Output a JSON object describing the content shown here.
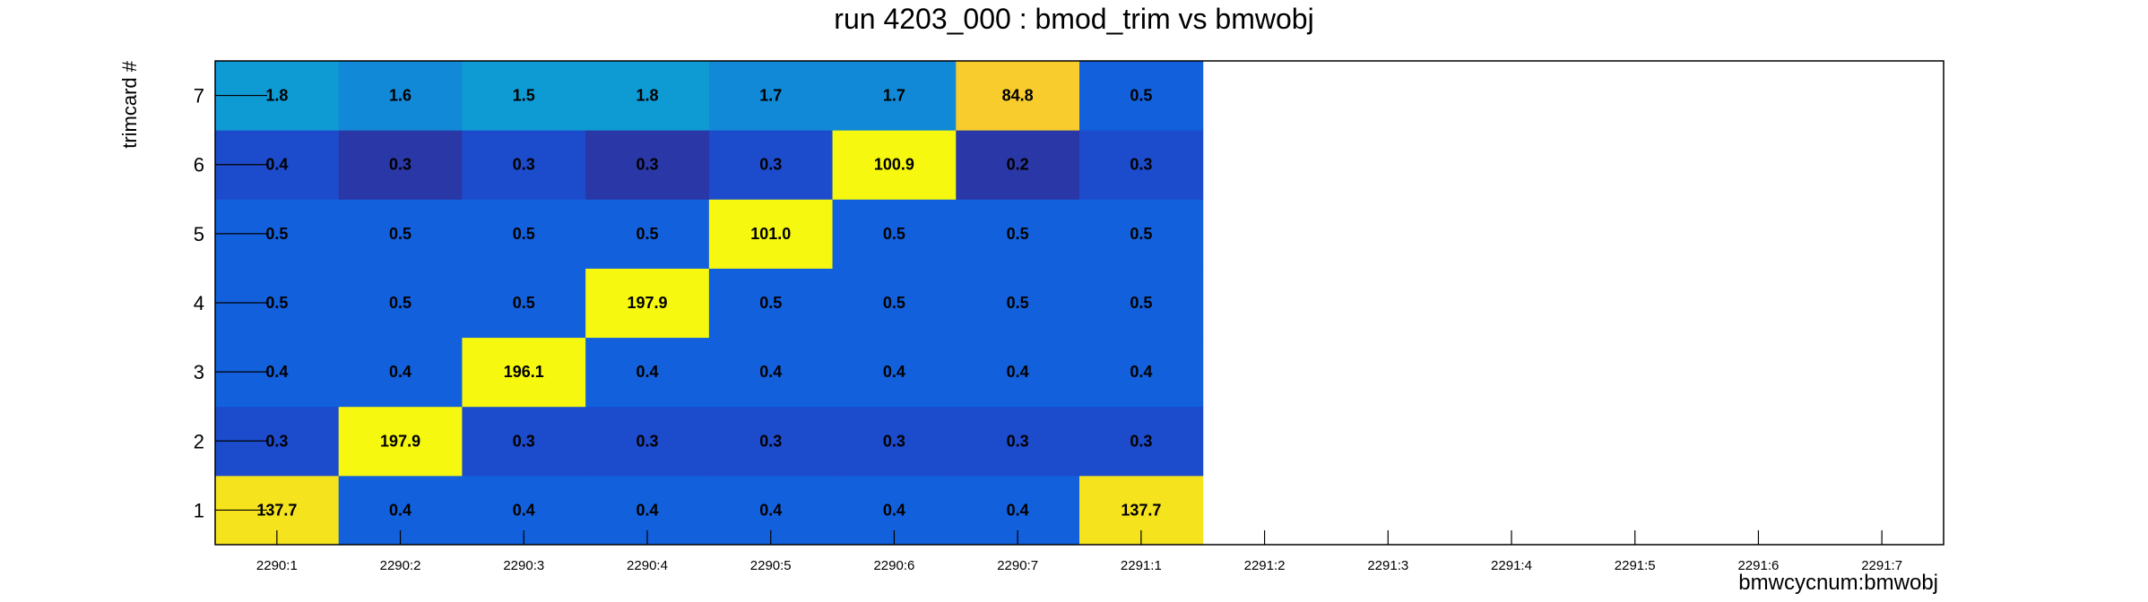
{
  "chart_data": {
    "type": "heatmap",
    "title": "run 4203_000 : bmod_trim vs bmwobj",
    "xlabel": "bmwcycnum:bmwobj",
    "ylabel": "trimcard #",
    "x_categories": [
      "2290:1",
      "2290:2",
      "2290:3",
      "2290:4",
      "2290:5",
      "2290:6",
      "2290:7",
      "2291:1",
      "2291:2",
      "2291:3",
      "2291:4",
      "2291:5",
      "2291:6",
      "2291:7"
    ],
    "y_categories": [
      "1",
      "2",
      "3",
      "4",
      "5",
      "6",
      "7"
    ],
    "values": [
      [
        137.7,
        0.4,
        0.4,
        0.4,
        0.4,
        0.4,
        0.4,
        137.7,
        null,
        null,
        null,
        null,
        null,
        null
      ],
      [
        0.3,
        197.9,
        0.3,
        0.3,
        0.3,
        0.3,
        0.3,
        0.3,
        null,
        null,
        null,
        null,
        null,
        null
      ],
      [
        0.4,
        0.4,
        196.1,
        0.4,
        0.4,
        0.4,
        0.4,
        0.4,
        null,
        null,
        null,
        null,
        null,
        null
      ],
      [
        0.5,
        0.5,
        0.5,
        197.9,
        0.5,
        0.5,
        0.5,
        0.5,
        null,
        null,
        null,
        null,
        null,
        null
      ],
      [
        0.5,
        0.5,
        0.5,
        0.5,
        101.0,
        0.5,
        0.5,
        0.5,
        null,
        null,
        null,
        null,
        null,
        null
      ],
      [
        0.4,
        0.3,
        0.3,
        0.3,
        0.3,
        100.9,
        0.2,
        0.3,
        null,
        null,
        null,
        null,
        null,
        null
      ],
      [
        1.8,
        1.6,
        1.5,
        1.8,
        1.7,
        1.7,
        84.8,
        0.5,
        null,
        null,
        null,
        null,
        null,
        null
      ]
    ],
    "colors": {
      "cell_blue": "#1260dc",
      "cell_darkblue": "#1c4bcc",
      "cell_navy": "#2a37a6",
      "cell_cyan": "#0e9ad3",
      "cell_cyan_mid": "#1289d6",
      "cell_orange": "#f8cc2c",
      "cell_gold": "#f5e31e",
      "cell_yellow": "#f6f80f"
    }
  }
}
